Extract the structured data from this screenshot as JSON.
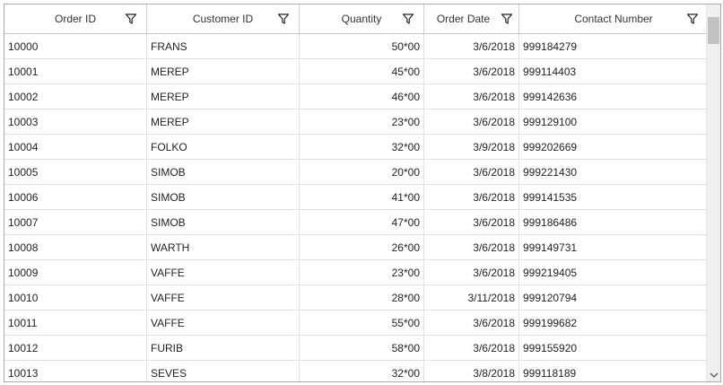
{
  "columns": [
    {
      "key": "order_id",
      "label": "Order ID",
      "align": "left"
    },
    {
      "key": "customer_id",
      "label": "Customer ID",
      "align": "left"
    },
    {
      "key": "quantity",
      "label": "Quantity",
      "align": "right"
    },
    {
      "key": "order_date",
      "label": "Order Date",
      "align": "right"
    },
    {
      "key": "contact",
      "label": "Contact Number",
      "align": "left"
    }
  ],
  "rows": [
    [
      "10000",
      "FRANS",
      "50*00",
      "3/6/2018",
      "999184279"
    ],
    [
      "10001",
      "MEREP",
      "45*00",
      "3/6/2018",
      "999114403"
    ],
    [
      "10002",
      "MEREP",
      "46*00",
      "3/6/2018",
      "999142636"
    ],
    [
      "10003",
      "MEREP",
      "23*00",
      "3/6/2018",
      "999129100"
    ],
    [
      "10004",
      "FOLKO",
      "32*00",
      "3/9/2018",
      "999202669"
    ],
    [
      "10005",
      "SIMOB",
      "20*00",
      "3/6/2018",
      "999221430"
    ],
    [
      "10006",
      "SIMOB",
      "41*00",
      "3/6/2018",
      "999141535"
    ],
    [
      "10007",
      "SIMOB",
      "47*00",
      "3/6/2018",
      "999186486"
    ],
    [
      "10008",
      "WARTH",
      "26*00",
      "3/6/2018",
      "999149731"
    ],
    [
      "10009",
      "VAFFE",
      "23*00",
      "3/6/2018",
      "999219405"
    ],
    [
      "10010",
      "VAFFE",
      "28*00",
      "3/11/2018",
      "999120794"
    ],
    [
      "10011",
      "VAFFE",
      "55*00",
      "3/6/2018",
      "999199682"
    ],
    [
      "10012",
      "FURIB",
      "58*00",
      "3/6/2018",
      "999155920"
    ],
    [
      "10013",
      "SEVES",
      "32*00",
      "3/8/2018",
      "999118189"
    ]
  ],
  "icons": {
    "filter": "filter-icon",
    "scroll_down": "chevron-down-icon"
  }
}
